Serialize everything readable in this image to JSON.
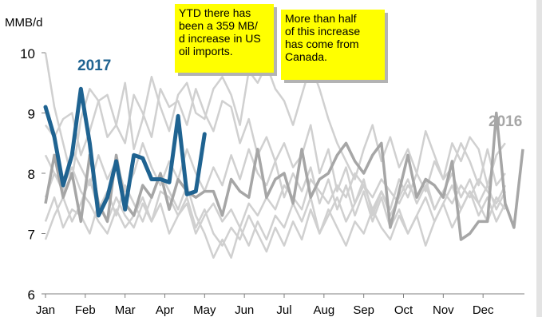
{
  "chart_data": {
    "type": "line",
    "ylabel": "MMB/d",
    "ylim": [
      6,
      10
    ],
    "yticks": [
      6,
      7,
      8,
      9,
      10
    ],
    "xticks": [
      "Jan",
      "Feb",
      "Mar",
      "Apr",
      "May",
      "Jun",
      "Jul",
      "Aug",
      "Sep",
      "Oct",
      "Nov",
      "Dec"
    ],
    "grid": false,
    "background_series": [
      {
        "values": [
          10.0,
          9.1,
          8.5,
          7.9,
          8.9,
          9.4,
          9.2,
          8.6,
          8.8,
          9.5,
          8.4,
          8.9,
          9.6,
          9.1,
          8.7,
          9.3,
          9.5,
          9.0,
          8.9,
          9.4,
          9.6,
          9.3,
          8.8,
          9.7,
          9.5,
          9.8,
          9.4,
          9.2,
          8.8,
          9.3,
          9.8,
          9.4,
          8.9,
          8.5,
          8.2,
          7.9,
          8.4,
          8.8,
          8.2,
          8.6,
          8.1,
          8.4,
          8.0,
          8.7,
          8.3,
          7.9,
          8.5,
          8.2,
          8.6,
          8.4,
          7.8,
          8.3,
          8.5
        ]
      },
      {
        "values": [
          8.8,
          8.6,
          8.9,
          9.0,
          8.3,
          8.7,
          9.2,
          9.3,
          8.8,
          8.5,
          9.3,
          9.0,
          8.6,
          9.4,
          9.1,
          9.2,
          8.8,
          9.4,
          9.0,
          8.7,
          9.2,
          9.1,
          8.5,
          8.9,
          8.3,
          8.6,
          8.2,
          8.5,
          8.1,
          8.3,
          8.8,
          8.0,
          8.4,
          7.7,
          8.1,
          7.5,
          7.9,
          7.3,
          7.7,
          7.4,
          7.9,
          7.6,
          8.0,
          7.7,
          8.2,
          7.9,
          8.1,
          8.5,
          8.2,
          7.8,
          8.4,
          7.8,
          8.0
        ]
      },
      {
        "values": [
          7.2,
          7.6,
          7.1,
          7.4,
          7.3,
          7.0,
          7.5,
          7.2,
          7.6,
          7.3,
          7.1,
          7.5,
          7.2,
          7.7,
          7.6,
          7.3,
          7.5,
          7.0,
          7.3,
          7.5,
          7.2,
          7.4,
          7.1,
          7.5,
          7.3,
          7.6,
          7.4,
          7.8,
          7.6,
          7.4,
          7.9,
          7.7,
          7.5,
          7.8,
          7.6,
          8.0,
          7.8,
          7.6,
          7.9,
          7.7,
          7.5,
          7.8,
          7.6,
          7.9,
          7.4,
          7.7,
          7.5,
          7.8,
          7.6,
          7.9,
          7.7,
          7.5,
          7.8
        ]
      },
      {
        "values": [
          6.9,
          7.3,
          7.6,
          7.2,
          7.5,
          7.9,
          7.4,
          7.7,
          7.3,
          7.8,
          7.5,
          7.2,
          7.6,
          8.0,
          7.7,
          7.4,
          7.8,
          7.3,
          7.0,
          6.6,
          6.9,
          6.6,
          7.1,
          6.8,
          7.2,
          6.9,
          7.3,
          7.1,
          7.5,
          7.2,
          7.6,
          7.0,
          7.4,
          7.1,
          6.8,
          7.2,
          7.0,
          7.4,
          7.1,
          6.9,
          7.3,
          7.0,
          7.3,
          6.8,
          7.2,
          7.5,
          7.1,
          7.4,
          7.7,
          7.5,
          7.2,
          7.6,
          7.4
        ]
      },
      {
        "values": [
          8.3,
          8.0,
          7.8,
          8.1,
          7.7,
          7.5,
          7.2,
          7.0,
          7.4,
          7.1,
          7.3,
          7.6,
          7.2,
          7.5,
          7.0,
          7.3,
          7.6,
          7.1,
          7.4,
          7.0,
          6.8,
          7.1,
          6.9,
          7.3,
          7.0,
          6.7,
          7.1,
          6.8,
          7.2,
          6.9,
          7.4,
          7.0,
          7.3,
          7.6,
          7.2,
          7.5,
          7.8,
          7.4,
          7.7,
          7.3,
          7.6,
          7.9,
          7.5,
          7.8,
          7.4,
          7.7,
          8.0,
          7.6,
          7.9,
          7.5,
          7.8,
          7.4,
          7.7
        ]
      },
      {
        "values": [
          7.6,
          8.0,
          7.7,
          8.4,
          8.1,
          7.8,
          8.3,
          7.9,
          8.2,
          7.7,
          8.0,
          8.5,
          8.1,
          7.8,
          8.2,
          7.9,
          8.4,
          8.0,
          7.7,
          8.1,
          7.8,
          8.3,
          7.9,
          8.4,
          8.0,
          7.8,
          8.2,
          7.6,
          8.0,
          7.7,
          8.1,
          7.5,
          7.9,
          7.4,
          7.8,
          7.3,
          7.7,
          7.2,
          7.6,
          7.1,
          7.4,
          7.0,
          7.3,
          7.6,
          7.2,
          7.5,
          7.8,
          7.4,
          7.7,
          7.3,
          7.6,
          7.2,
          7.5
        ]
      }
    ],
    "series": [
      {
        "name": "2017",
        "color": "#1f6391",
        "values": [
          9.1,
          8.6,
          7.8,
          8.3,
          9.4,
          8.5,
          7.3,
          7.6,
          8.2,
          7.4,
          8.3,
          8.25,
          7.9,
          7.9,
          7.85,
          8.95,
          7.65,
          7.7,
          8.65
        ]
      },
      {
        "name": "2016",
        "color": "#a6a6a6",
        "values": [
          7.5,
          8.3,
          7.6,
          8.0,
          7.2,
          8.3,
          7.5,
          7.2,
          8.3,
          7.5,
          7.3,
          7.8,
          7.6,
          8.0,
          7.4,
          7.9,
          7.7,
          7.6,
          7.7,
          7.7,
          7.3,
          7.9,
          7.7,
          7.6,
          8.4,
          7.6,
          7.9,
          8.0,
          7.5,
          8.4,
          7.6,
          7.9,
          8.0,
          8.3,
          8.5,
          8.2,
          8.0,
          8.3,
          8.5,
          7.1,
          7.7,
          8.3,
          7.6,
          7.9,
          7.8,
          7.6,
          8.2,
          6.9,
          7.0,
          7.2,
          7.2,
          9.0,
          7.5,
          7.1,
          8.4
        ]
      }
    ],
    "annotations": [
      "YTD there has\nbeen a 359 MB/\nd increase in US\noil imports.",
      "More than half\nof this increase\nhas come from\nCanada."
    ]
  }
}
